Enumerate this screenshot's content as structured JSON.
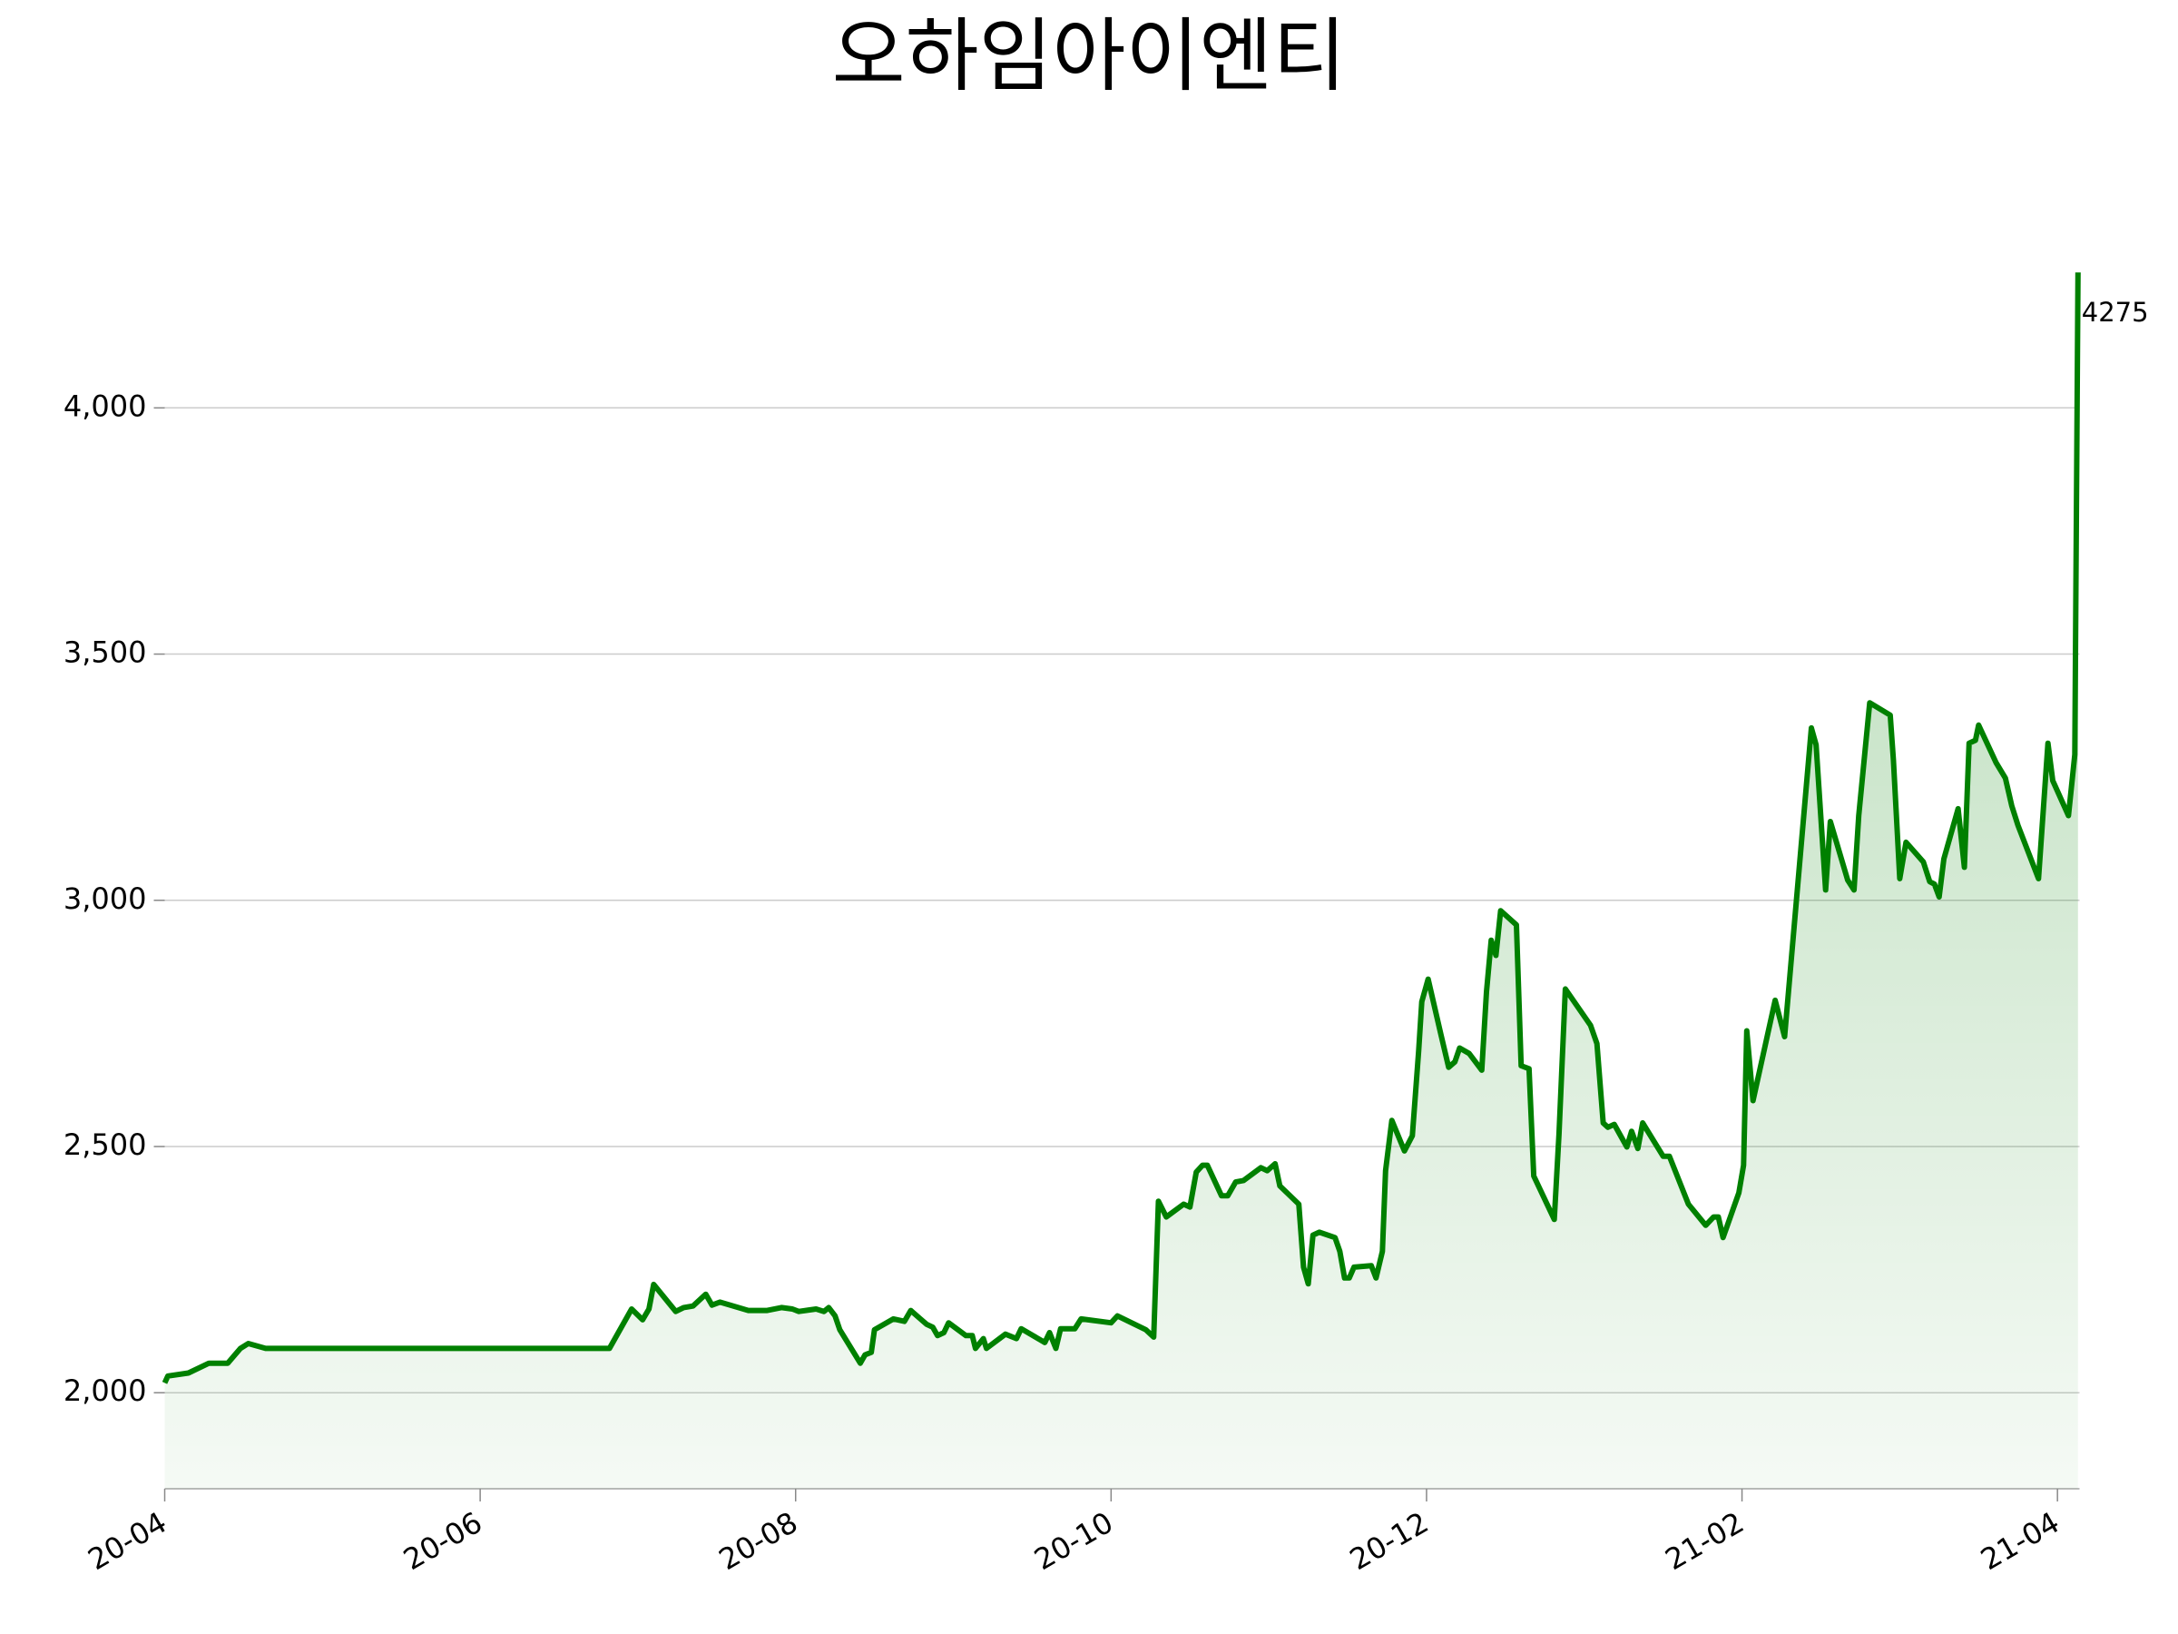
{
  "chart_data": {
    "type": "line",
    "title": "오하임아이엔티",
    "x": [
      0,
      0.02,
      0.15,
      0.28,
      0.4,
      0.48,
      0.53,
      0.64,
      2.82,
      2.96,
      3.03,
      3.07,
      3.1,
      3.24,
      3.29,
      3.35,
      3.43,
      3.47,
      3.52,
      3.7,
      3.82,
      3.91,
      3.98,
      4.02,
      4.13,
      4.18,
      4.21,
      4.25,
      4.28,
      4.41,
      4.44,
      4.48,
      4.5,
      4.62,
      4.69,
      4.73,
      4.83,
      4.87,
      4.9,
      4.94,
      4.97,
      5.08,
      5.12,
      5.14,
      5.19,
      5.21,
      5.33,
      5.4,
      5.43,
      5.58,
      5.61,
      5.65,
      5.68,
      5.77,
      5.81,
      6.0,
      6.04,
      6.22,
      6.27,
      6.3,
      6.35,
      6.46,
      6.5,
      6.54,
      6.58,
      6.61,
      6.7,
      6.74,
      6.79,
      6.84,
      6.95,
      6.99,
      7.04,
      7.07,
      7.19,
      7.22,
      7.25,
      7.28,
      7.32,
      7.42,
      7.45,
      7.48,
      7.51,
      7.54,
      7.65,
      7.68,
      7.72,
      7.74,
      7.78,
      7.86,
      7.91,
      7.95,
      7.97,
      8.01,
      8.09,
      8.14,
      8.18,
      8.21,
      8.27,
      8.35,
      8.38,
      8.41,
      8.44,
      8.47,
      8.57,
      8.6,
      8.65,
      8.68,
      8.81,
      8.84,
      8.88,
      9.04,
      9.08,
      9.12,
      9.15,
      9.19,
      9.27,
      9.3,
      9.34,
      9.37,
      9.5,
      9.54,
      9.66,
      9.77,
      9.82,
      9.85,
      9.88,
      9.98,
      10.01,
      10.03,
      10.07,
      10.21,
      10.27,
      10.44,
      10.47,
      10.53,
      10.56,
      10.67,
      10.71,
      10.74,
      10.81,
      10.94,
      10.96,
      11.0,
      11.04,
      11.15,
      11.19,
      11.22,
      11.25,
      11.28,
      11.37,
      11.41,
      11.44,
      11.48,
      11.5,
      11.61,
      11.67,
      11.71,
      11.75,
      11.88,
      11.94,
      11.97,
      12.07,
      12.11,
      12.13
    ],
    "series": [
      {
        "color": "#008000",
        "values": [
          2020,
          2034,
          2040,
          2060,
          2060,
          2090,
          2100,
          2090,
          2090,
          2170,
          2148,
          2170,
          2220,
          2165,
          2173,
          2176,
          2200,
          2178,
          2184,
          2167,
          2167,
          2173,
          2170,
          2165,
          2170,
          2165,
          2173,
          2156,
          2128,
          2060,
          2077,
          2082,
          2128,
          2150,
          2145,
          2167,
          2139,
          2133,
          2116,
          2122,
          2142,
          2116,
          2116,
          2090,
          2110,
          2090,
          2119,
          2110,
          2130,
          2102,
          2122,
          2090,
          2130,
          2130,
          2150,
          2142,
          2156,
          2128,
          2113,
          2389,
          2357,
          2383,
          2377,
          2448,
          2462,
          2462,
          2400,
          2400,
          2428,
          2431,
          2457,
          2451,
          2465,
          2420,
          2383,
          2255,
          2221,
          2320,
          2326,
          2315,
          2287,
          2233,
          2233,
          2255,
          2258,
          2233,
          2287,
          2451,
          2553,
          2491,
          2522,
          2695,
          2794,
          2840,
          2729,
          2661,
          2672,
          2700,
          2689,
          2655,
          2814,
          2919,
          2888,
          2979,
          2950,
          2664,
          2658,
          2440,
          2352,
          2525,
          2820,
          2746,
          2709,
          2548,
          2539,
          2545,
          2499,
          2531,
          2496,
          2548,
          2480,
          2480,
          2383,
          2340,
          2357,
          2357,
          2315,
          2406,
          2462,
          2735,
          2593,
          2797,
          2723,
          3350,
          3316,
          3021,
          3160,
          3041,
          3021,
          3172,
          3401,
          3376,
          3285,
          3044,
          3118,
          3078,
          3038,
          3033,
          3007,
          3084,
          3186,
          3067,
          3319,
          3325,
          3356,
          3280,
          3248,
          3192,
          3152,
          3044,
          3319,
          3243,
          3172,
          3296,
          4275
        ]
      }
    ],
    "xlim": [
      0,
      12.14
    ],
    "xticks": [
      {
        "value": 0,
        "label": "20-04"
      },
      {
        "value": 2,
        "label": "20-06"
      },
      {
        "value": 4,
        "label": "20-08"
      },
      {
        "value": 6,
        "label": "20-10"
      },
      {
        "value": 8,
        "label": "20-12"
      },
      {
        "value": 10,
        "label": "21-02"
      },
      {
        "value": 12,
        "label": "21-04"
      }
    ],
    "ylim": [
      1805,
      4290
    ],
    "yticks": [
      {
        "value": 2000,
        "label": "2,000"
      },
      {
        "value": 2500,
        "label": "2,500"
      },
      {
        "value": 3000,
        "label": "3,000"
      },
      {
        "value": 3500,
        "label": "3,500"
      },
      {
        "value": 4000,
        "label": "4,000"
      }
    ],
    "grid": true
  }
}
